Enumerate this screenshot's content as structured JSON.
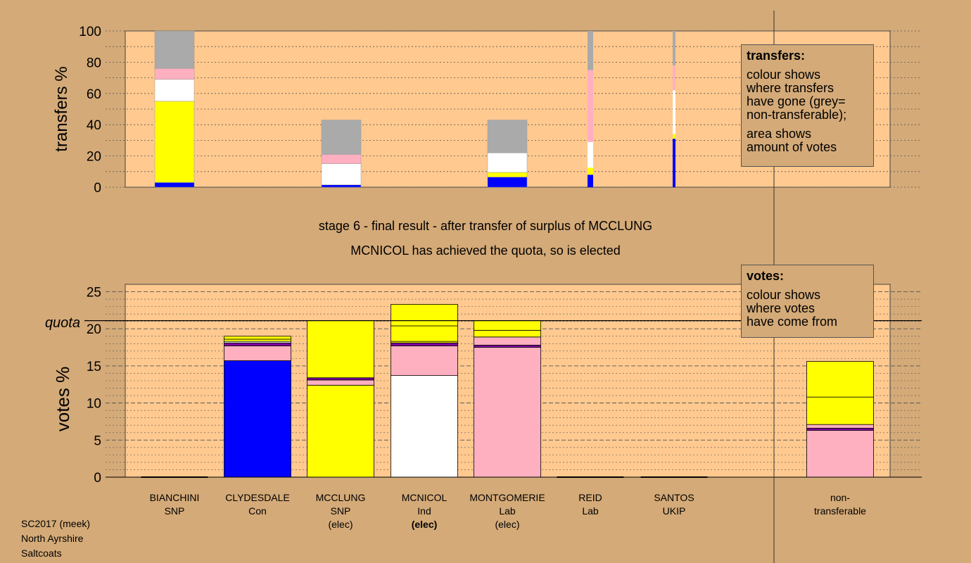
{
  "captions": {
    "line1": "stage 6 - final result - after transfer of surplus of MCCLUNG",
    "line2": "MCNICOL has achieved the quota, so is elected"
  },
  "transfers_legend": {
    "title": "transfers:",
    "lines": [
      "colour shows",
      "where transfers",
      "have gone (grey=",
      "non-transferable);"
    ],
    "lines2": [
      "area shows",
      "amount of votes"
    ]
  },
  "votes_legend": {
    "title": "votes:",
    "lines": [
      "colour shows",
      "where votes",
      "have come from"
    ]
  },
  "quota_label": "quota",
  "candidates": [
    {
      "name": "BIANCHINI",
      "party": "SNP",
      "status": ""
    },
    {
      "name": "CLYDESDALE",
      "party": "Con",
      "status": ""
    },
    {
      "name": "MCCLUNG",
      "party": "SNP",
      "status": "(elec)"
    },
    {
      "name": "MCNICOL",
      "party": "Ind",
      "status": "(elec)"
    },
    {
      "name": "MONTGOMERIE",
      "party": "Lab",
      "status": "(elec)"
    },
    {
      "name": "REID",
      "party": "Lab",
      "status": ""
    },
    {
      "name": "SANTOS",
      "party": "UKIP",
      "status": ""
    },
    {
      "name": "non-",
      "party": "transferable",
      "status": ""
    }
  ],
  "footer": [
    "SC2017 (meek)",
    "North Ayrshire",
    "Saltcoats"
  ],
  "colors": {
    "background": "#d4aa78",
    "plot_area": "#ffc98f",
    "Con": "#0000ff",
    "SNP": "#ffff00",
    "Ind": "#ffffff",
    "Lab": "#ffb0c0",
    "UKIP": "#8000a0",
    "nontransferable": "#aaaaaa"
  },
  "chart_data": [
    {
      "type": "bar",
      "stacked": true,
      "ylabel": "transfers %",
      "ylim": [
        0,
        100
      ],
      "yticks": [
        0,
        20,
        40,
        60,
        80,
        100
      ],
      "bars": [
        {
          "label": "BIANCHINI",
          "width": "wide",
          "segments": [
            {
              "color": "Con",
              "from": 0,
              "to": 3
            },
            {
              "color": "SNP",
              "from": 3,
              "to": 55
            },
            {
              "color": "Ind",
              "from": 55,
              "to": 69
            },
            {
              "color": "Lab",
              "from": 69,
              "to": 76
            },
            {
              "color": "nontransferable",
              "from": 76,
              "to": 100
            }
          ]
        },
        {
          "label": "MCCLUNG",
          "width": "wide",
          "segments": [
            {
              "color": "Con",
              "from": 0,
              "to": 1.5
            },
            {
              "color": "Ind",
              "from": 1.5,
              "to": 15
            },
            {
              "color": "Lab",
              "from": 15,
              "to": 21
            },
            {
              "color": "nontransferable",
              "from": 21,
              "to": 43
            }
          ]
        },
        {
          "label": "MONTGOMERIE",
          "width": "wide",
          "segments": [
            {
              "color": "Con",
              "from": 0,
              "to": 6.5
            },
            {
              "color": "SNP",
              "from": 6.5,
              "to": 9.5
            },
            {
              "color": "Ind",
              "from": 9.5,
              "to": 22
            },
            {
              "color": "nontransferable",
              "from": 22,
              "to": 43
            }
          ]
        },
        {
          "label": "REID",
          "width": "narrow",
          "segments": [
            {
              "color": "Con",
              "from": 0,
              "to": 8
            },
            {
              "color": "SNP",
              "from": 8,
              "to": 12.5
            },
            {
              "color": "Ind",
              "from": 12.5,
              "to": 29
            },
            {
              "color": "Lab",
              "from": 29,
              "to": 75
            },
            {
              "color": "nontransferable",
              "from": 75,
              "to": 100
            }
          ]
        },
        {
          "label": "SANTOS",
          "width": "thin",
          "segments": [
            {
              "color": "Con",
              "from": 0,
              "to": 31
            },
            {
              "color": "SNP",
              "from": 31,
              "to": 34
            },
            {
              "color": "Ind",
              "from": 34,
              "to": 62
            },
            {
              "color": "Lab",
              "from": 62,
              "to": 78
            },
            {
              "color": "nontransferable",
              "from": 78,
              "to": 100
            }
          ]
        }
      ]
    },
    {
      "type": "bar",
      "stacked": true,
      "ylabel": "votes %",
      "ylim": [
        0,
        26
      ],
      "yticks": [
        0,
        5,
        10,
        15,
        20,
        25
      ],
      "quota": 21.1,
      "categories": [
        "BIANCHINI",
        "CLYDESDALE",
        "MCCLUNG",
        "MCNICOL",
        "MONTGOMERIE",
        "REID",
        "SANTOS",
        "non-transferable"
      ],
      "bars": [
        {
          "label": "BIANCHINI",
          "segments": []
        },
        {
          "label": "CLYDESDALE",
          "segments": [
            {
              "color": "Con",
              "from": 0,
              "to": 15.7
            },
            {
              "color": "Lab",
              "from": 15.7,
              "to": 17.7
            },
            {
              "color": "UKIP",
              "from": 17.7,
              "to": 18.1
            },
            {
              "color": "Ind",
              "from": 18.1,
              "to": 18.3
            },
            {
              "color": "SNP",
              "from": 18.3,
              "to": 18.6
            },
            {
              "color": "SNP",
              "from": 18.6,
              "to": 19.0
            }
          ]
        },
        {
          "label": "MCCLUNG",
          "segments": [
            {
              "color": "SNP",
              "from": 0,
              "to": 12.4
            },
            {
              "color": "Lab",
              "from": 12.4,
              "to": 13.1
            },
            {
              "color": "UKIP",
              "from": 13.1,
              "to": 13.4
            },
            {
              "color": "SNP",
              "from": 13.4,
              "to": 21.1
            }
          ]
        },
        {
          "label": "MCNICOL",
          "segments": [
            {
              "color": "Ind",
              "from": 0,
              "to": 13.7
            },
            {
              "color": "Lab",
              "from": 13.7,
              "to": 17.7
            },
            {
              "color": "UKIP",
              "from": 17.7,
              "to": 18.1
            },
            {
              "color": "SNP",
              "from": 18.1,
              "to": 18.3
            },
            {
              "color": "SNP",
              "from": 18.3,
              "to": 20.4
            },
            {
              "color": "SNP",
              "from": 20.4,
              "to": 23.3
            }
          ]
        },
        {
          "label": "MONTGOMERIE",
          "segments": [
            {
              "color": "Lab",
              "from": 0,
              "to": 17.5
            },
            {
              "color": "UKIP",
              "from": 17.5,
              "to": 17.8
            },
            {
              "color": "Lab",
              "from": 17.8,
              "to": 18.9
            },
            {
              "color": "SNP",
              "from": 18.9,
              "to": 19.8
            },
            {
              "color": "SNP",
              "from": 19.8,
              "to": 21.1
            }
          ]
        },
        {
          "label": "REID",
          "segments": []
        },
        {
          "label": "SANTOS",
          "segments": []
        },
        {
          "label": "non-transferable",
          "segments": [
            {
              "color": "Lab",
              "from": 0,
              "to": 6.3
            },
            {
              "color": "UKIP",
              "from": 6.3,
              "to": 6.6
            },
            {
              "color": "Lab",
              "from": 6.6,
              "to": 7.1
            },
            {
              "color": "SNP",
              "from": 7.1,
              "to": 10.8
            },
            {
              "color": "SNP",
              "from": 10.8,
              "to": 15.6
            }
          ]
        }
      ]
    }
  ]
}
